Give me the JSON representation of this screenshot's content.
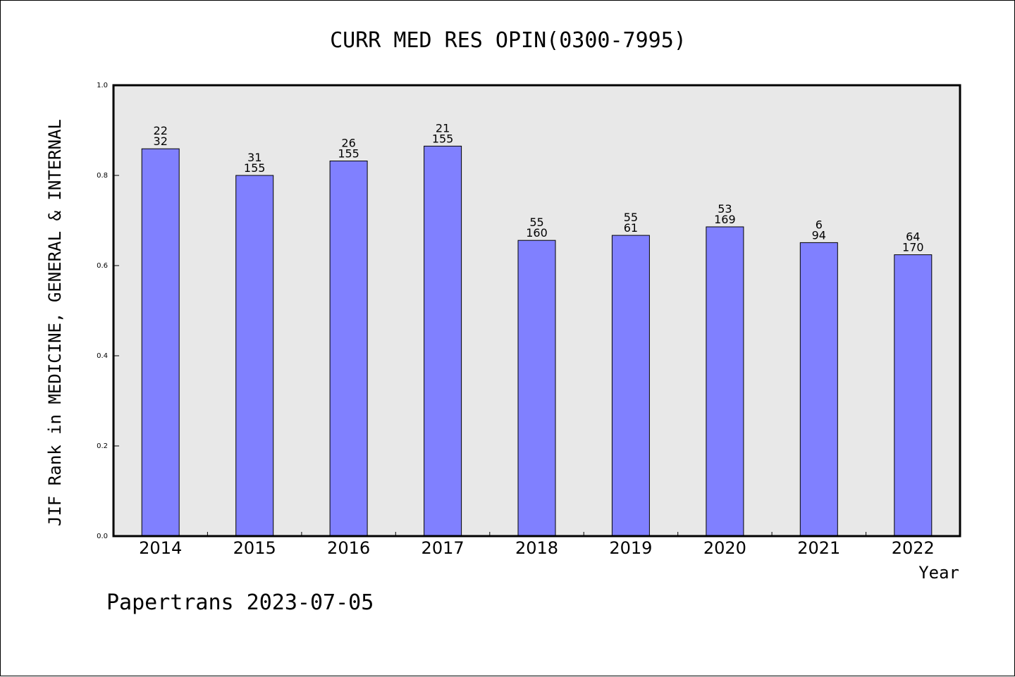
{
  "chart_data": {
    "type": "bar",
    "title": "CURR MED RES OPIN(0300-7995)",
    "ylabel": "JIF Rank in MEDICINE, GENERAL & INTERNAL",
    "xlabel": "Year",
    "ylim": [
      0,
      1.0
    ],
    "yticks": [
      "0.0",
      "0.2",
      "0.4",
      "0.6",
      "0.8",
      "1.0"
    ],
    "categories": [
      "2014",
      "2015",
      "2016",
      "2017",
      "2018",
      "2019",
      "2020",
      "2021",
      "2022"
    ],
    "values": [
      0.859,
      0.8,
      0.832,
      0.865,
      0.656,
      0.667,
      0.686,
      0.651,
      0.624
    ],
    "rank_labels": [
      "22",
      "31",
      "26",
      "21",
      "55",
      "55",
      "53",
      "6",
      "64"
    ],
    "total_labels": [
      "32",
      "155",
      "155",
      "155",
      "160",
      "61",
      "169",
      "94",
      "170"
    ],
    "bar_color": "#8080ff",
    "plot_background": "#e8e8e8",
    "grid": false,
    "legend": "none"
  },
  "footer": "Papertrans 2023-07-05"
}
